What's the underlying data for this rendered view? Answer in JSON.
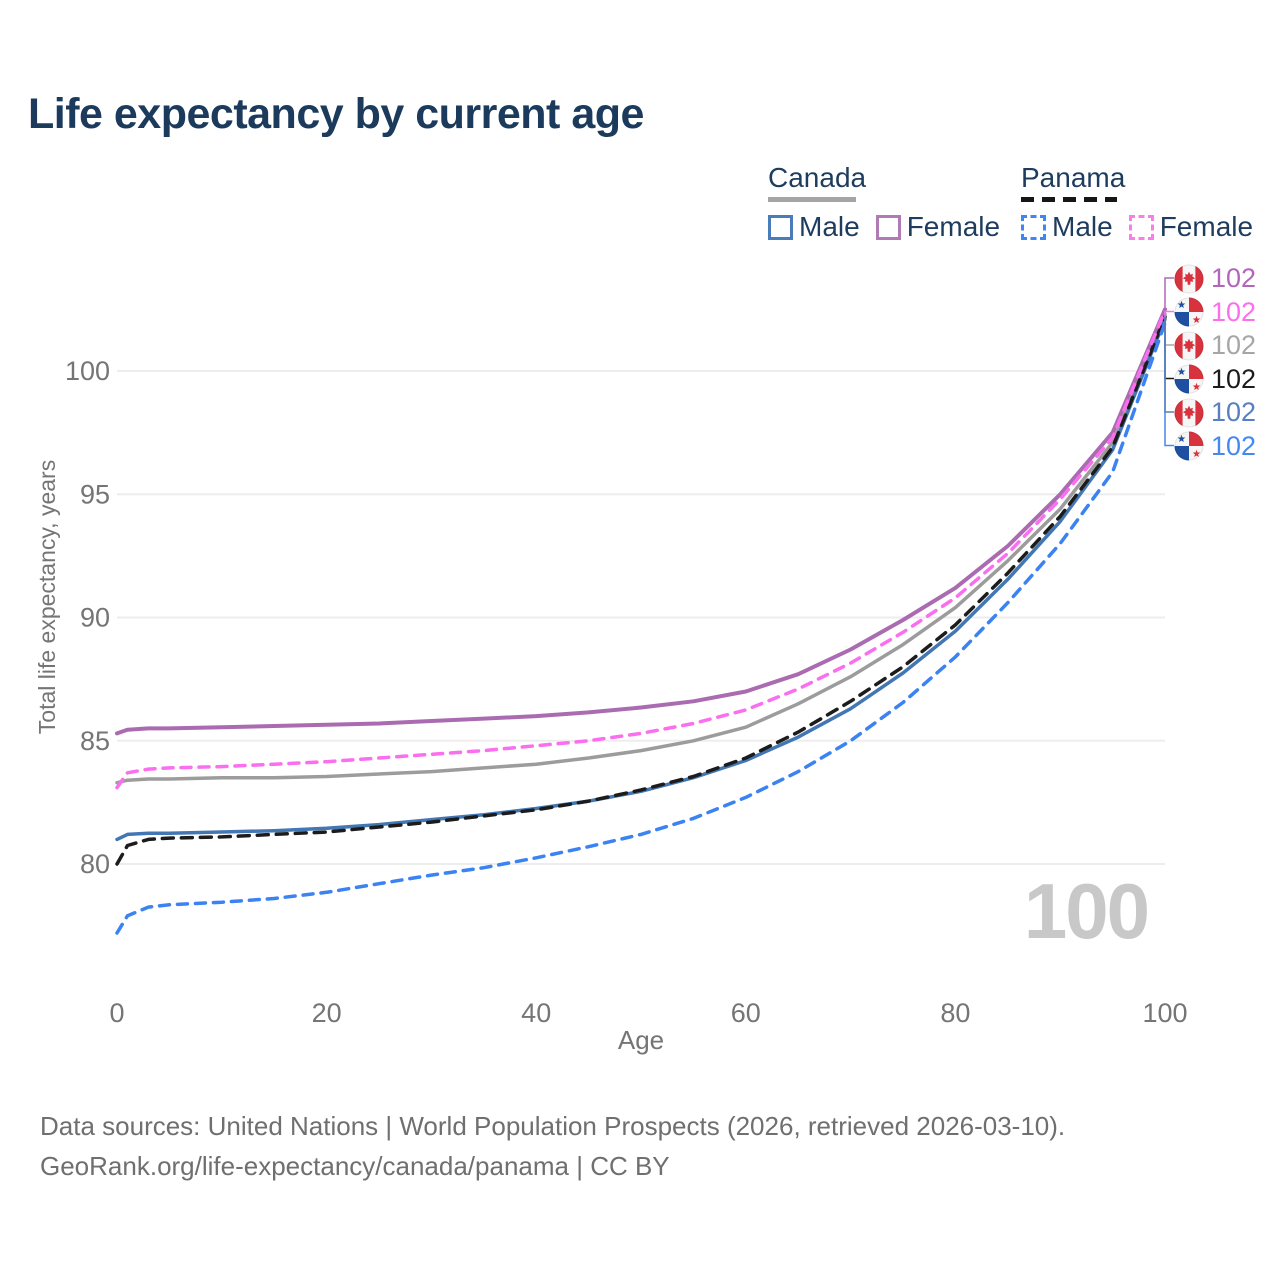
{
  "title": "Life expectancy by current age",
  "legend": {
    "groups": [
      {
        "label": "Canada",
        "line_style": "solid",
        "underline_color": "#a5a5a5",
        "items": [
          {
            "label": "Male",
            "color": "#4a7cba",
            "dashed": false
          },
          {
            "label": "Female",
            "color": "#b07ab5",
            "dashed": false
          }
        ]
      },
      {
        "label": "Panama",
        "line_style": "dashed",
        "underline_color": "#161616",
        "items": [
          {
            "label": "Male",
            "color": "#3e86f2",
            "dashed": true
          },
          {
            "label": "Female",
            "color": "#fa7eea",
            "dashed": true
          }
        ]
      }
    ]
  },
  "chart_data": {
    "type": "line",
    "title": "Life expectancy by current age",
    "xlabel": "Age",
    "ylabel": "Total life expectancy, years",
    "xticks": [
      0,
      20,
      40,
      60,
      80,
      100
    ],
    "yticks": [
      80,
      85,
      90,
      95,
      100
    ],
    "xlim": [
      0,
      100
    ],
    "ylim": [
      77,
      103
    ],
    "grid": true,
    "legend_position": "top-right",
    "watermark": "100",
    "x": [
      0,
      1,
      3,
      5,
      10,
      15,
      20,
      25,
      30,
      35,
      40,
      45,
      50,
      55,
      60,
      65,
      70,
      75,
      80,
      85,
      90,
      95,
      100
    ],
    "series": [
      {
        "name": "Canada (all)",
        "color": "#9c9c9c",
        "dash": null,
        "width": 3.5,
        "values": [
          83.3,
          83.4,
          83.45,
          83.45,
          83.5,
          83.5,
          83.55,
          83.65,
          83.75,
          83.9,
          84.05,
          84.3,
          84.6,
          85.0,
          85.55,
          86.5,
          87.6,
          88.9,
          90.4,
          92.3,
          94.4,
          97.1,
          102.3
        ]
      },
      {
        "name": "Canada Male",
        "color": "#4377b4",
        "dash": null,
        "width": 3.5,
        "values": [
          81.0,
          81.2,
          81.25,
          81.25,
          81.3,
          81.35,
          81.45,
          81.6,
          81.8,
          82.0,
          82.25,
          82.55,
          82.95,
          83.5,
          84.2,
          85.15,
          86.3,
          87.75,
          89.45,
          91.55,
          93.9,
          96.8,
          102.1
        ]
      },
      {
        "name": "Canada Female",
        "color": "#aa6bb1",
        "dash": null,
        "width": 4,
        "values": [
          85.3,
          85.45,
          85.5,
          85.5,
          85.55,
          85.6,
          85.65,
          85.7,
          85.8,
          85.9,
          86.0,
          86.15,
          86.35,
          86.6,
          87.0,
          87.7,
          88.7,
          89.9,
          91.2,
          92.9,
          95.0,
          97.5,
          102.5
        ]
      },
      {
        "name": "Panama (all)",
        "color": "#1c1c1c",
        "dash": "11 8",
        "width": 3.5,
        "values": [
          80.0,
          80.75,
          81.0,
          81.05,
          81.1,
          81.2,
          81.3,
          81.5,
          81.7,
          81.95,
          82.2,
          82.55,
          83.0,
          83.55,
          84.3,
          85.35,
          86.6,
          88.0,
          89.7,
          91.8,
          94.1,
          96.9,
          102.2
        ]
      },
      {
        "name": "Panama Female",
        "color": "#fa6eef",
        "dash": "10 8",
        "width": 3.5,
        "values": [
          83.1,
          83.7,
          83.85,
          83.9,
          83.95,
          84.05,
          84.15,
          84.3,
          84.45,
          84.6,
          84.8,
          85.0,
          85.3,
          85.7,
          86.25,
          87.1,
          88.15,
          89.4,
          90.8,
          92.6,
          94.8,
          97.3,
          102.45
        ]
      },
      {
        "name": "Panama Male",
        "color": "#3b82f2",
        "dash": "10 8",
        "width": 3.5,
        "values": [
          77.2,
          77.9,
          78.25,
          78.35,
          78.45,
          78.6,
          78.85,
          79.2,
          79.55,
          79.85,
          80.25,
          80.7,
          81.2,
          81.85,
          82.7,
          83.75,
          85.0,
          86.55,
          88.4,
          90.6,
          93.0,
          95.9,
          101.95
        ]
      }
    ],
    "end_labels": [
      {
        "flag": "canada",
        "series": "Canada Female",
        "value": "102",
        "color": "#b266bb"
      },
      {
        "flag": "panama",
        "series": "Panama Female",
        "value": "102",
        "color": "#fa6eef"
      },
      {
        "flag": "canada",
        "series": "Canada (all)",
        "value": "102",
        "color": "#a6a6a6"
      },
      {
        "flag": "panama",
        "series": "Panama (all)",
        "value": "102",
        "color": "#1c1c1c"
      },
      {
        "flag": "canada",
        "series": "Canada Male",
        "value": "102",
        "color": "#587fc0"
      },
      {
        "flag": "panama",
        "series": "Panama Male",
        "value": "102",
        "color": "#4489f2"
      }
    ]
  },
  "footer": {
    "line1": "Data sources: United Nations | World Population Prospects (2026, retrieved 2026-03-10).",
    "line2": "GeoRank.org/life-expectancy/canada/panama | CC BY"
  }
}
